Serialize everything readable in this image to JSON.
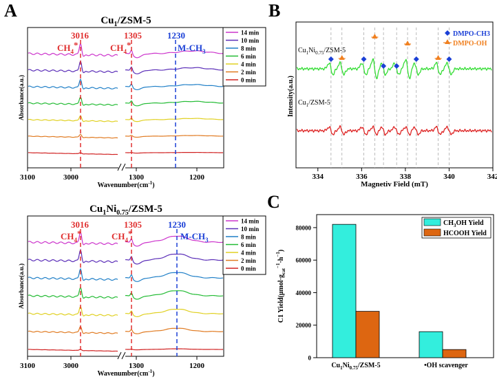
{
  "chart_data": [
    {
      "panel": "A",
      "type": "line",
      "title": "Cu1/ZSM-5",
      "xlabel": "Wavenumber(cm-1)",
      "ylabel": "Absorbance(a.u.)",
      "x_ticks": [
        "3100",
        "3000",
        "1300",
        "1200"
      ],
      "markers": [
        {
          "label": "3016",
          "x": 3016,
          "color": "#e03030",
          "species": "CH4*"
        },
        {
          "label": "1305",
          "x": 1305,
          "color": "#e03030",
          "species": "CH4*"
        },
        {
          "label": "1230",
          "x": 1230,
          "color": "#1a3fd6",
          "species": "M-CH3"
        }
      ],
      "species_labels": [
        "CH4*",
        "CH4*",
        "M-CH3"
      ],
      "legend": [
        "14 min",
        "10 min",
        "8 min",
        "6 min",
        "4 min",
        "2 min",
        "0 min"
      ],
      "series_colors": [
        "#cc33cc",
        "#5a2db8",
        "#1f7fc7",
        "#22bb33",
        "#e0d020",
        "#e07a20",
        "#d02020"
      ],
      "series_amplitude": [
        1.0,
        0.9,
        0.75,
        0.65,
        0.45,
        0.25,
        0.1
      ]
    },
    {
      "panel": "A2",
      "type": "line",
      "title": "Cu1Ni0.75/ZSM-5",
      "xlabel": "Wavenumber(cm-1)",
      "ylabel": "Absorbance(a.u.)",
      "x_ticks": [
        "3100",
        "3000",
        "1300",
        "1200"
      ],
      "markers": [
        {
          "label": "3016",
          "x": 3016,
          "color": "#e03030",
          "species": "CH4*"
        },
        {
          "label": "1305",
          "x": 1305,
          "color": "#e03030",
          "species": "CH4*"
        },
        {
          "label": "1230",
          "x": 1230,
          "color": "#1a3fd6",
          "species": "M-CH3"
        }
      ],
      "species_labels": [
        "CH4*",
        "CH4*",
        "M-CH3"
      ],
      "legend": [
        "14 min",
        "10 min",
        "8 min",
        "6 min",
        "4 min",
        "2 min",
        "0 min"
      ],
      "series_colors": [
        "#cc33cc",
        "#5a2db8",
        "#1f7fc7",
        "#22bb33",
        "#e0d020",
        "#e07a20",
        "#d02020"
      ],
      "series_amplitude": [
        1.0,
        1.0,
        0.9,
        0.85,
        0.75,
        0.55,
        0.1
      ]
    },
    {
      "panel": "B",
      "type": "line",
      "title": "",
      "xlabel": "Magnetiv Field (mT)",
      "ylabel": "Intensity(a.u.)",
      "xlim": [
        333,
        342
      ],
      "x_ticks": [
        334,
        336,
        338,
        340,
        342
      ],
      "series": [
        {
          "name": "Cu1Ni0.75/ZSM-5",
          "color": "#33dd33"
        },
        {
          "name": "Cu1/ZSM-5",
          "color": "#dd2222"
        }
      ],
      "peaks_x": [
        334.6,
        335.1,
        336.1,
        336.6,
        337.0,
        337.6,
        338.1,
        338.5,
        339.5,
        340.0
      ],
      "dmpo_ch3_peaks": [
        334.6,
        336.1,
        337.0,
        337.6,
        338.5,
        340.0
      ],
      "dmpo_oh_peaks": [
        335.1,
        336.6,
        338.1,
        339.5
      ],
      "legend": [
        {
          "label": "DMPO-CH3",
          "color": "#1a3fd6",
          "marker": "diamond"
        },
        {
          "label": "DMPO-OH",
          "color": "#f08020",
          "marker": "triangle"
        }
      ]
    },
    {
      "panel": "C",
      "type": "bar",
      "categories": [
        "Cu1Ni0.75/ZSM-5",
        "•OH scavenger"
      ],
      "series": [
        {
          "name": "CH3OH Yield",
          "color": "#33eedd",
          "values": [
            82000,
            16000
          ]
        },
        {
          "name": "HCOOH Yield",
          "color": "#dd6611",
          "values": [
            28500,
            5000
          ]
        }
      ],
      "ylabel": "C1 Yield(μmol·g_cat^-1·h^-1)",
      "ylim": [
        0,
        88000
      ],
      "y_ticks": [
        0,
        20000,
        40000,
        60000,
        80000
      ],
      "xlabel": ""
    }
  ],
  "labels": {
    "panel_a": "A",
    "panel_b": "B",
    "panel_c": "C",
    "title_a1_main": "Cu",
    "title_a1_sub": "1",
    "title_a1_rest": "/ZSM-5",
    "title_a2_main": "Cu",
    "title_a2_sub1": "1",
    "title_a2_mid": "Ni",
    "title_a2_sub2": "0.75",
    "title_a2_rest": "/ZSM-5",
    "species_ch4": "CH",
    "species_ch4_sub": "4",
    "species_ch4_sup": "*",
    "species_mch3": "M-CH",
    "species_mch3_sub": "3",
    "wavenumber_prefix": "Wavenumber(cm",
    "wavenumber_sup": "-1",
    "wavenumber_suffix": ")",
    "absorbance": "Absorbance(a.u.)",
    "b_series1_prefix": "Cu",
    "b_series1_sub1": "1",
    "b_series1_mid": "Ni",
    "b_series1_sub2": "0.75",
    "b_series1_rest": "/ZSM-5",
    "b_series2_prefix": "Cu",
    "b_series2_sub": "1",
    "b_series2_rest": "/ZSM-5",
    "b_legend_ch3": "DMPO-CH3",
    "b_legend_oh": "DMPO-OH",
    "b_xlabel": "Magnetiv Field (mT)",
    "b_ylabel": "Intensity(a.u.)",
    "c_legend_1_main": "CH",
    "c_legend_1_sub": "3",
    "c_legend_1_rest": "OH Yield",
    "c_legend_2": "HCOOH Yield",
    "c_ylabel_main": "C1 Yield(μmol",
    "c_ylabel_dot": "·",
    "c_ylabel_g": "g",
    "c_ylabel_cat": "cat",
    "c_ylabel_sup1": "−1",
    "c_ylabel_h": "·h",
    "c_ylabel_sup2": "−1",
    "c_ylabel_end": ")",
    "c_cat1_main": "Cu",
    "c_cat1_sub1": "1",
    "c_cat1_mid": "Ni",
    "c_cat1_sub2": "0.75",
    "c_cat1_rest": "/ZSM-5",
    "c_cat2": "•OH scavenger"
  }
}
